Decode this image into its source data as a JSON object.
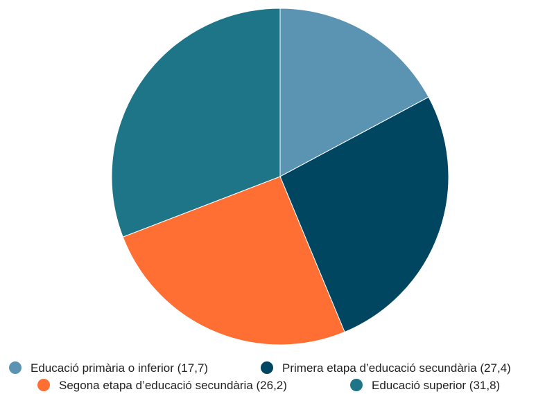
{
  "chart_data": {
    "type": "pie",
    "title": "",
    "slices": [
      {
        "label": "Educació primària o inferior (17,7)",
        "value": 17.7,
        "color": "#5b93b3"
      },
      {
        "label": "Primera etapa d’educació secundària (27,4)",
        "value": 27.4,
        "color": "#004661"
      },
      {
        "label": "Segona etapa d’educació secundària (26,2)",
        "value": 26.2,
        "color": "#ff6e33"
      },
      {
        "label": "Educació superior (31,8)",
        "value": 31.8,
        "color": "#1e7587"
      }
    ],
    "start_angle_deg": 0,
    "direction": "clockwise",
    "legend_position": "bottom"
  }
}
